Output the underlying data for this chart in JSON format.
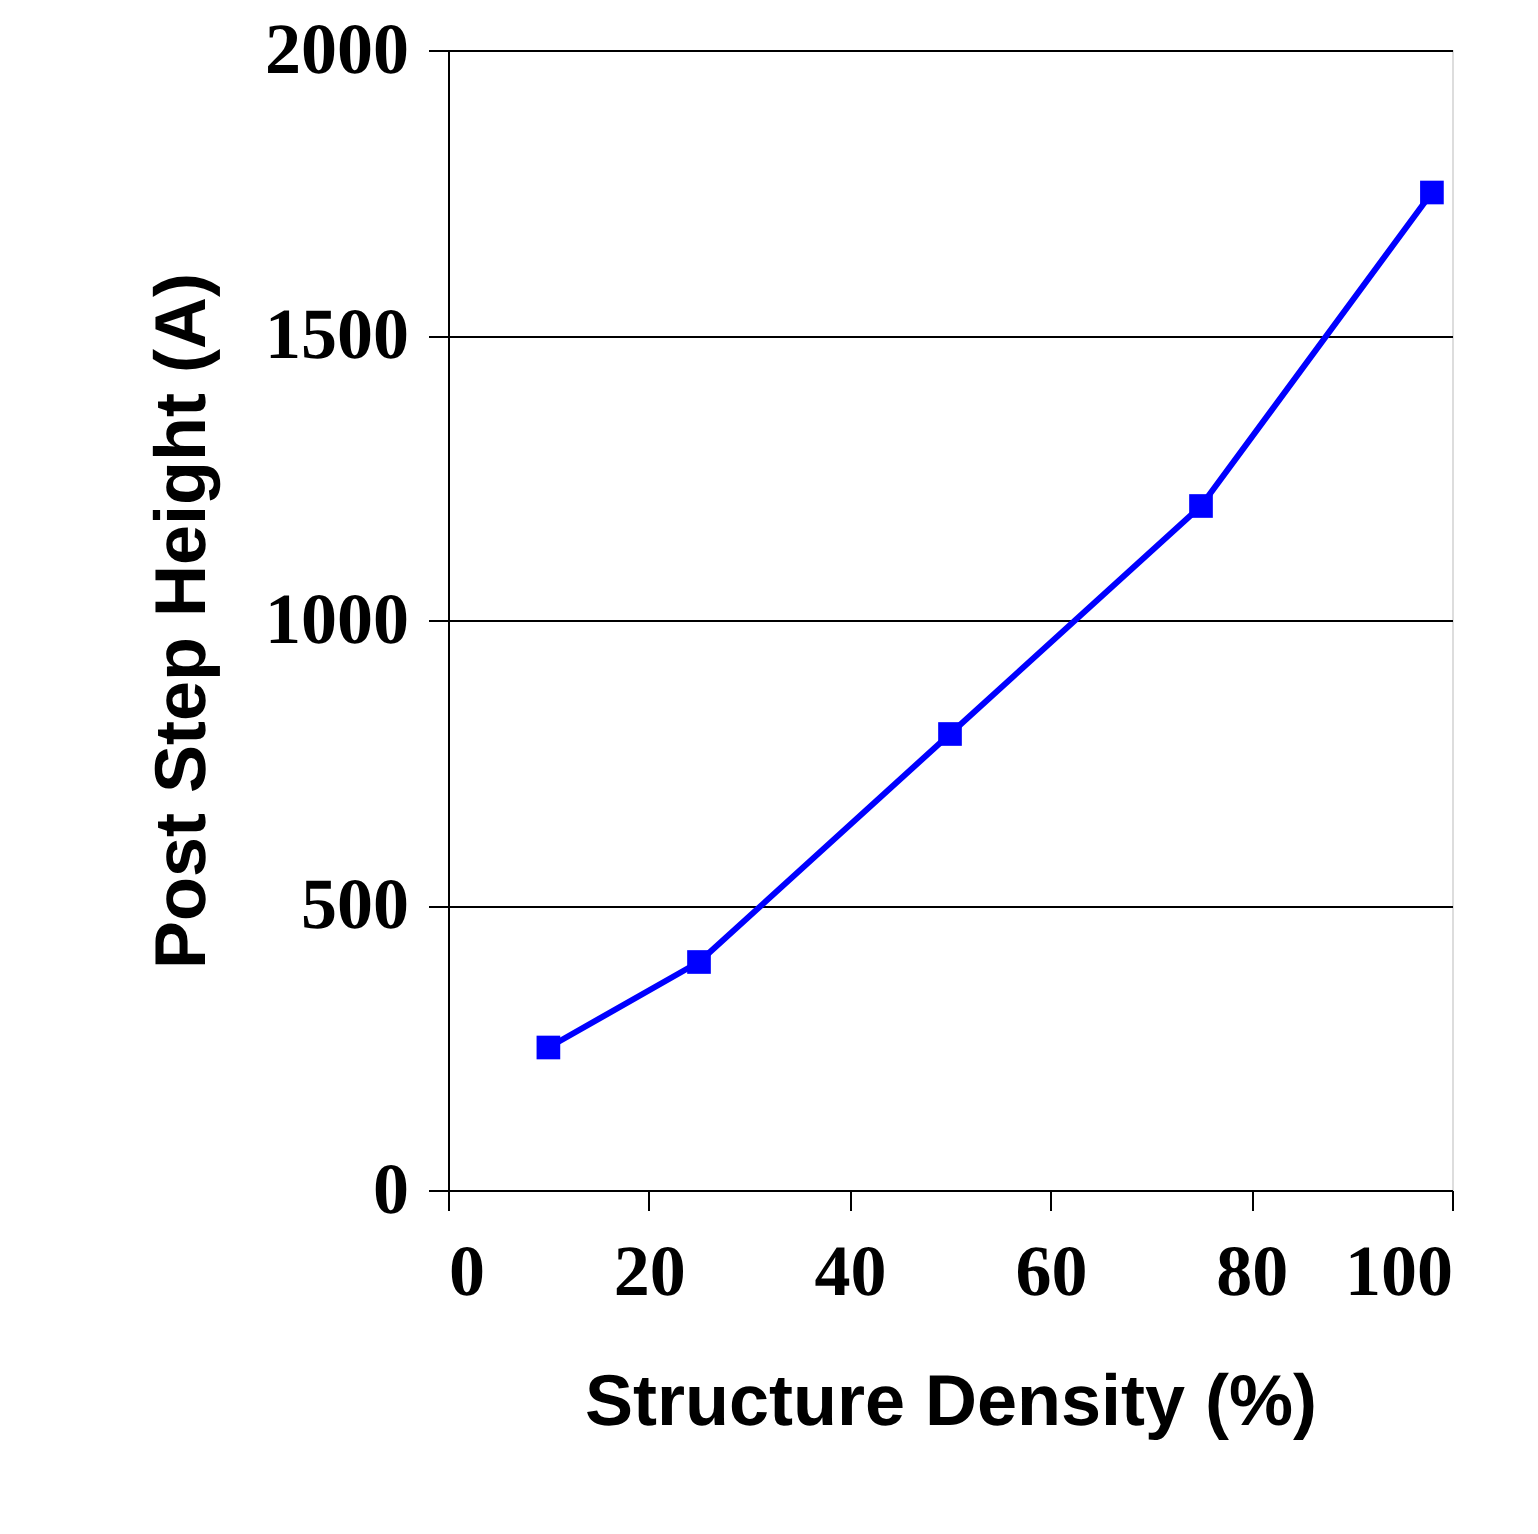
{
  "chart_data": {
    "type": "line",
    "xlabel": "Structure Density (%)",
    "ylabel": "Post Step Height (A)",
    "x": [
      10,
      25,
      50,
      75,
      98
    ],
    "series": [
      {
        "color": "#0000ff",
        "values": [
          250,
          400,
          800,
          1200,
          1750
        ]
      }
    ],
    "xlim": [
      0,
      100
    ],
    "xticks": [
      0,
      20,
      40,
      60,
      80,
      100
    ],
    "ylim": [
      0,
      2000
    ],
    "yticks": [
      0,
      500,
      1000,
      1500,
      2000
    ],
    "grid": "y",
    "marker": "square",
    "line_style": "solid"
  }
}
